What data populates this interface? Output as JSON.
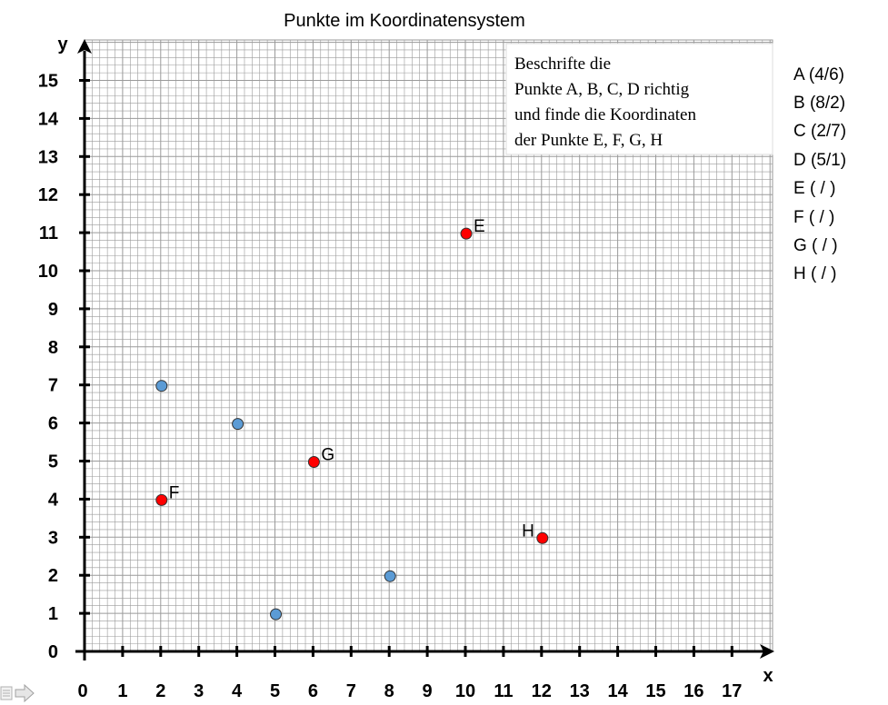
{
  "chart_data": {
    "type": "scatter",
    "title": "Punkte im Koordinatensystem",
    "xlabel": "x",
    "ylabel": "y",
    "xlim": [
      0,
      18
    ],
    "ylim": [
      0,
      16
    ],
    "x_ticks": [
      "0",
      "1",
      "2",
      "3",
      "4",
      "5",
      "6",
      "7",
      "8",
      "9",
      "10",
      "11",
      "12",
      "13",
      "14",
      "15",
      "16",
      "17"
    ],
    "y_ticks": [
      "0",
      "1",
      "2",
      "3",
      "4",
      "5",
      "6",
      "7",
      "8",
      "9",
      "10",
      "11",
      "12",
      "13",
      "14",
      "15"
    ],
    "grid": true,
    "series": [
      {
        "color": "#5B9BD5",
        "points": [
          {
            "x": 2,
            "y": 7,
            "label": ""
          },
          {
            "x": 4,
            "y": 6,
            "label": ""
          },
          {
            "x": 5,
            "y": 1,
            "label": ""
          },
          {
            "x": 8,
            "y": 2,
            "label": ""
          }
        ]
      },
      {
        "color": "#FF0000",
        "points": [
          {
            "x": 10,
            "y": 11,
            "label": "E"
          },
          {
            "x": 6,
            "y": 5,
            "label": "G"
          },
          {
            "x": 2,
            "y": 4,
            "label": "F"
          },
          {
            "x": 12,
            "y": 3,
            "label": "H"
          }
        ]
      }
    ],
    "annotation": [
      "Beschrifte die",
      "Punkte A, B, C, D richtig",
      "und finde die Koordinaten",
      "der Punkte E, F, G, H"
    ],
    "side_list": [
      "A (4/6)",
      "B (8/2)",
      "C (2/7)",
      "D (5/1)",
      "E (  /  )",
      "F (  /  )",
      "G (  /  )",
      "H (  /  )"
    ]
  },
  "colors": {
    "grid": "#9a9a9a",
    "axis": "#000000",
    "marker_outline": "#333333"
  },
  "icons": [
    "slide-nav-icon",
    "next-arrow-icon"
  ]
}
